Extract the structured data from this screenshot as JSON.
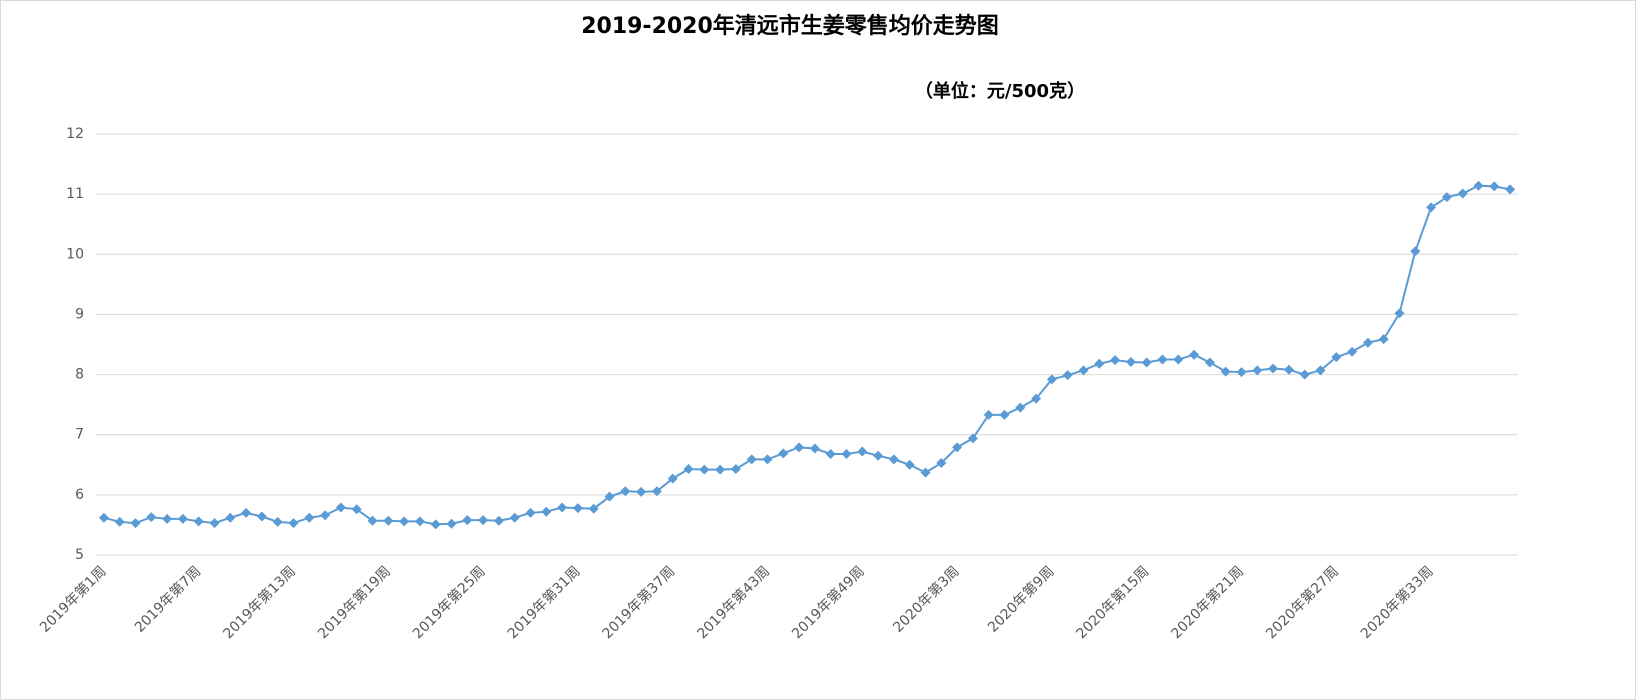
{
  "chart_data": {
    "type": "line",
    "title": "2019-2020年清远市生姜零售均价走势图",
    "subtitle": "（单位：元/500克）",
    "categories": [
      "2019年第1周",
      null,
      null,
      null,
      null,
      null,
      "2019年第7周",
      null,
      null,
      null,
      null,
      null,
      "2019年第13周",
      null,
      null,
      null,
      null,
      null,
      "2019年第19周",
      null,
      null,
      null,
      null,
      null,
      "2019年第25周",
      null,
      null,
      null,
      null,
      null,
      "2019年第31周",
      null,
      null,
      null,
      null,
      null,
      "2019年第37周",
      null,
      null,
      null,
      null,
      null,
      "2019年第43周",
      null,
      null,
      null,
      null,
      null,
      "2019年第49周",
      null,
      null,
      null,
      null,
      null,
      "2020年第3周",
      null,
      null,
      null,
      null,
      null,
      "2020年第9周",
      null,
      null,
      null,
      null,
      null,
      "2020年第15周",
      null,
      null,
      null,
      null,
      null,
      "2020年第21周",
      null,
      null,
      null,
      null,
      null,
      "2020年第27周",
      null,
      null,
      null,
      null,
      null,
      "2020年第33周",
      null,
      null,
      null,
      null,
      null
    ],
    "series": [
      {
        "name": "生姜零售均价",
        "color": "#5b9bd5",
        "values": [
          5.62,
          5.55,
          5.53,
          5.63,
          5.6,
          5.6,
          5.56,
          5.53,
          5.62,
          5.7,
          5.64,
          5.55,
          5.53,
          5.62,
          5.66,
          5.79,
          5.76,
          5.57,
          5.57,
          5.56,
          5.56,
          5.51,
          5.52,
          5.58,
          5.58,
          5.57,
          5.62,
          5.7,
          5.72,
          5.79,
          5.78,
          5.77,
          5.97,
          6.06,
          6.05,
          6.06,
          6.27,
          6.43,
          6.42,
          6.42,
          6.43,
          6.59,
          6.59,
          6.69,
          6.79,
          6.77,
          6.68,
          6.68,
          6.72,
          6.65,
          6.59,
          6.5,
          6.37,
          6.53,
          6.79,
          6.94,
          7.33,
          7.33,
          7.45,
          7.6,
          7.92,
          7.99,
          8.07,
          8.18,
          8.24,
          8.21,
          8.2,
          8.25,
          8.25,
          8.33,
          8.2,
          8.05,
          8.04,
          8.07,
          8.1,
          8.08,
          8.0,
          8.07,
          8.29,
          8.38,
          8.53,
          8.59,
          9.02,
          10.05,
          10.78,
          10.95,
          11.01,
          11.14,
          11.13,
          11.08
        ]
      }
    ],
    "ylim": [
      5,
      12
    ],
    "yticks": [
      5,
      6,
      7,
      8,
      9,
      10,
      11,
      12
    ],
    "grid": true
  }
}
